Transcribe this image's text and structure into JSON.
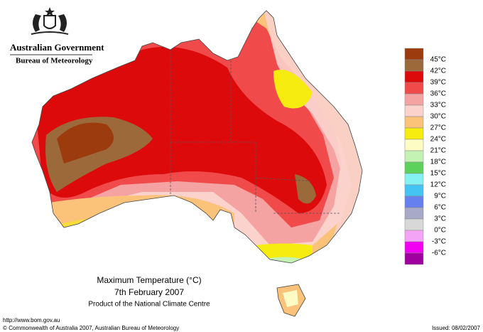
{
  "header": {
    "agency": "Australian Government",
    "bureau": "Bureau of Meteorology"
  },
  "map": {
    "title": "Maximum Temperature (°C)",
    "date": "7th February 2007",
    "product": "Product of the National Climate Centre"
  },
  "legend": {
    "labels": [
      "45°C",
      "42°C",
      "39°C",
      "36°C",
      "33°C",
      "30°C",
      "27°C",
      "24°C",
      "21°C",
      "18°C",
      "15°C",
      "12°C",
      "9°C",
      "6°C",
      "3°C",
      "0°C",
      "-3°C",
      "-6°C"
    ],
    "colors": [
      "#9c3c0e",
      "#9c6a3a",
      "#dc0a0a",
      "#f04a4a",
      "#f5a2a2",
      "#fbd2cc",
      "#fbc27a",
      "#f6ec10",
      "#fdfcc4",
      "#c4f2b4",
      "#5cd25c",
      "#84f2f2",
      "#44c4f2",
      "#6680f0",
      "#a8a8c8",
      "#d8d8d8",
      "#f4a4f4",
      "#f200f2",
      "#a000a0"
    ]
  },
  "footer": {
    "url": "http://www.bom.gov.au",
    "copyright": "© Commonwealth of Australia 2007, Australian Bureau of Meteorology",
    "issued": "Issued: 08/02/2007"
  }
}
